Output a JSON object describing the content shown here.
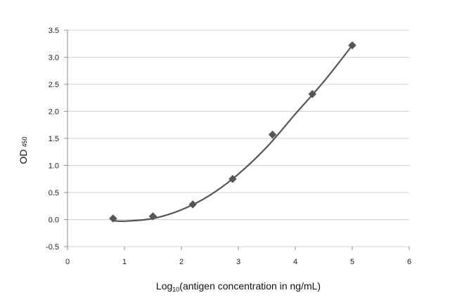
{
  "chart_data": {
    "type": "scatter",
    "xlabel": {
      "prefix": "Log",
      "sub": "10",
      "suffix": "(antigen concentration in ng/mL)"
    },
    "ylabel": {
      "main": "OD",
      "sub": "450"
    },
    "xlim": [
      0,
      6
    ],
    "ylim": [
      -0.5,
      3.5
    ],
    "x_ticks": [
      0,
      1,
      2,
      3,
      4,
      5,
      6
    ],
    "y_ticks": [
      -0.5,
      0.0,
      0.5,
      1.0,
      1.5,
      2.0,
      2.5,
      3.0,
      3.5
    ],
    "x_tick_labels": [
      "0",
      "1",
      "2",
      "3",
      "4",
      "5",
      "6"
    ],
    "y_tick_labels": [
      "-0.5",
      "0.0",
      "0.5",
      "1.0",
      "1.5",
      "2.0",
      "2.5",
      "3.0",
      "3.5"
    ],
    "grid": "horizontal",
    "series": [
      {
        "marker": "diamond",
        "x": [
          0.8,
          1.5,
          2.2,
          2.9,
          3.6,
          4.3,
          5.0
        ],
        "y": [
          0.02,
          0.06,
          0.28,
          0.75,
          1.57,
          2.32,
          3.22
        ]
      }
    ],
    "trendline": {
      "type": "polynomial",
      "x": [
        0.8,
        1.0,
        1.5,
        2.0,
        2.5,
        3.0,
        3.5,
        4.0,
        4.5,
        5.0
      ],
      "y": [
        -0.02,
        -0.03,
        0.02,
        0.18,
        0.45,
        0.84,
        1.34,
        1.95,
        2.55,
        3.22
      ]
    },
    "colors": {
      "marker": "#555555",
      "line": "#555555",
      "grid": "#d0d0d0",
      "axis": "#8c8c8c"
    }
  }
}
